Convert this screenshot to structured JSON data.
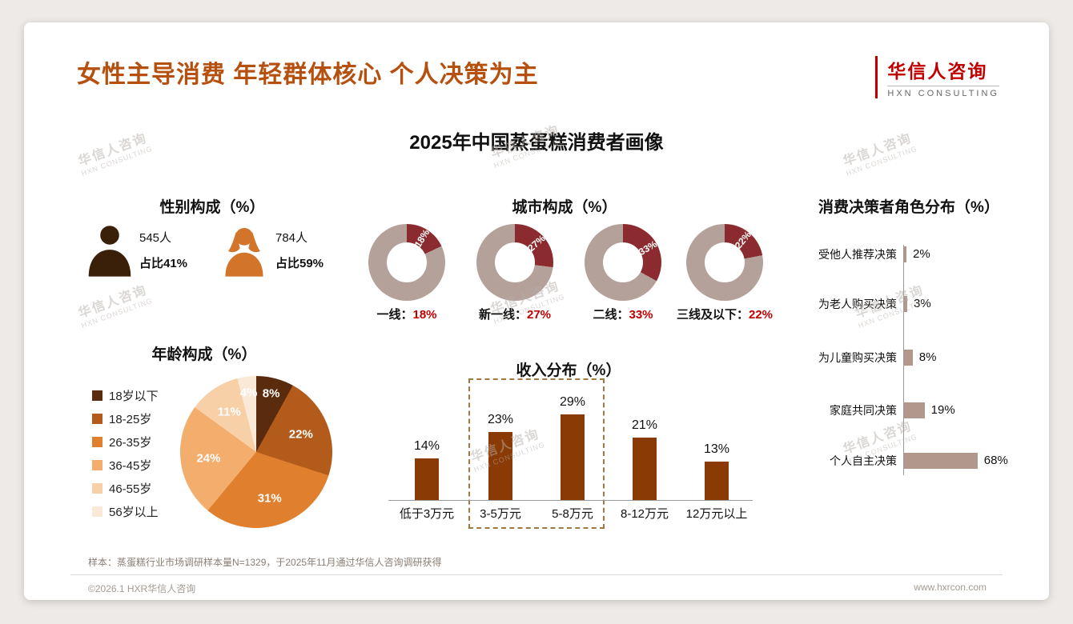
{
  "page": {
    "title": "女性主导消费 年轻群体核心 个人决策为主",
    "logo": {
      "cn": "华信人咨询",
      "en": "HXN CONSULTING"
    },
    "main_title": "2025年中国蒸蛋糕消费者画像",
    "footnote": "样本：蒸蛋糕行业市场调研样本量N=1329，于2025年11月通过华信人咨询调研获得",
    "footer_left": "©2026.1 HXR华信人咨询",
    "footer_right": "www.hxrcon.com",
    "watermark": {
      "cn": "华信人咨询",
      "en": "HXN CONSULTING"
    }
  },
  "colors": {
    "accent": "#B5500F",
    "brand_red": "#C00000",
    "value_red": "#C00000",
    "page_bg": "#EDEAE7",
    "card_bg": "#FFFFFF"
  },
  "chart_data": [
    {
      "id": "gender",
      "type": "pictogram",
      "title": "性别构成（%）",
      "items": [
        {
          "label": "男",
          "count": "545人",
          "share": "占比41%",
          "color": "#3A2008"
        },
        {
          "label": "女",
          "count": "784人",
          "share": "占比59%",
          "color": "#D2752A"
        }
      ]
    },
    {
      "id": "city",
      "type": "donut",
      "title": "城市构成（%）",
      "items": [
        {
          "label": "一线",
          "value": 18
        },
        {
          "label": "新一线",
          "value": 27
        },
        {
          "label": "二线",
          "value": 33
        },
        {
          "label": "三线及以下",
          "value": 22
        }
      ],
      "slice_color": "#8B2B2F",
      "rest_color": "#B4A19A"
    },
    {
      "id": "age",
      "type": "pie",
      "title": "年龄构成（%）",
      "categories": [
        "18岁以下",
        "18-25岁",
        "26-35岁",
        "36-45岁",
        "46-55岁",
        "56岁以上"
      ],
      "values": [
        8,
        22,
        31,
        24,
        11,
        4
      ],
      "colors": [
        "#5B2B0E",
        "#B25B1B",
        "#E0802F",
        "#F3AD6C",
        "#F8D0A8",
        "#FBE9D8"
      ]
    },
    {
      "id": "income",
      "type": "bar",
      "title": "收入分布（%）",
      "categories": [
        "低于3万元",
        "3-5万元",
        "5-8万元",
        "8-12万元",
        "12万元以上"
      ],
      "values": [
        14,
        23,
        29,
        21,
        13
      ],
      "bar_color": "#8A3A05",
      "highlight_range": [
        1,
        2
      ],
      "ylim": [
        0,
        30
      ]
    },
    {
      "id": "decision",
      "type": "hbar",
      "title": "消费决策者角色分布（%）",
      "categories": [
        "受他人推荐决策",
        "为老人购买决策",
        "为儿童购买决策",
        "家庭共同决策",
        "个人自主决策"
      ],
      "values": [
        2,
        3,
        8,
        19,
        68
      ],
      "bar_color": "#B2978D",
      "xlim": [
        0,
        70
      ]
    }
  ]
}
